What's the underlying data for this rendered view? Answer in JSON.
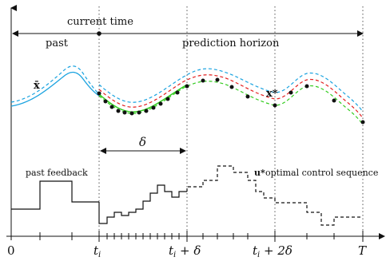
{
  "labels": {
    "current_time": "current time",
    "past": "past",
    "prediction_horizon": "prediction horizon",
    "x_bar": "x̄",
    "x_star": "x*",
    "delta": "δ",
    "past_feedback": "past feedback",
    "u_star": "u*",
    "optimal_control_sequence": "optimal control sequence"
  },
  "axis_labels": {
    "zero": "0",
    "t_i": "t",
    "t_i_sub": "i",
    "t_i_plus_delta_base": "t",
    "t_i_plus_delta_sub": "i",
    "t_i_plus_delta_rest": " + δ",
    "t_i_plus_2delta_base": "t",
    "t_i_plus_2delta_sub": "i",
    "t_i_plus_2delta_rest": " + 2δ",
    "T": "T"
  },
  "colors": {
    "blue": "#1aa3e0",
    "red": "#e21f1f",
    "green": "#33cc1f",
    "black": "#111111",
    "dotted": "#555555"
  }
}
